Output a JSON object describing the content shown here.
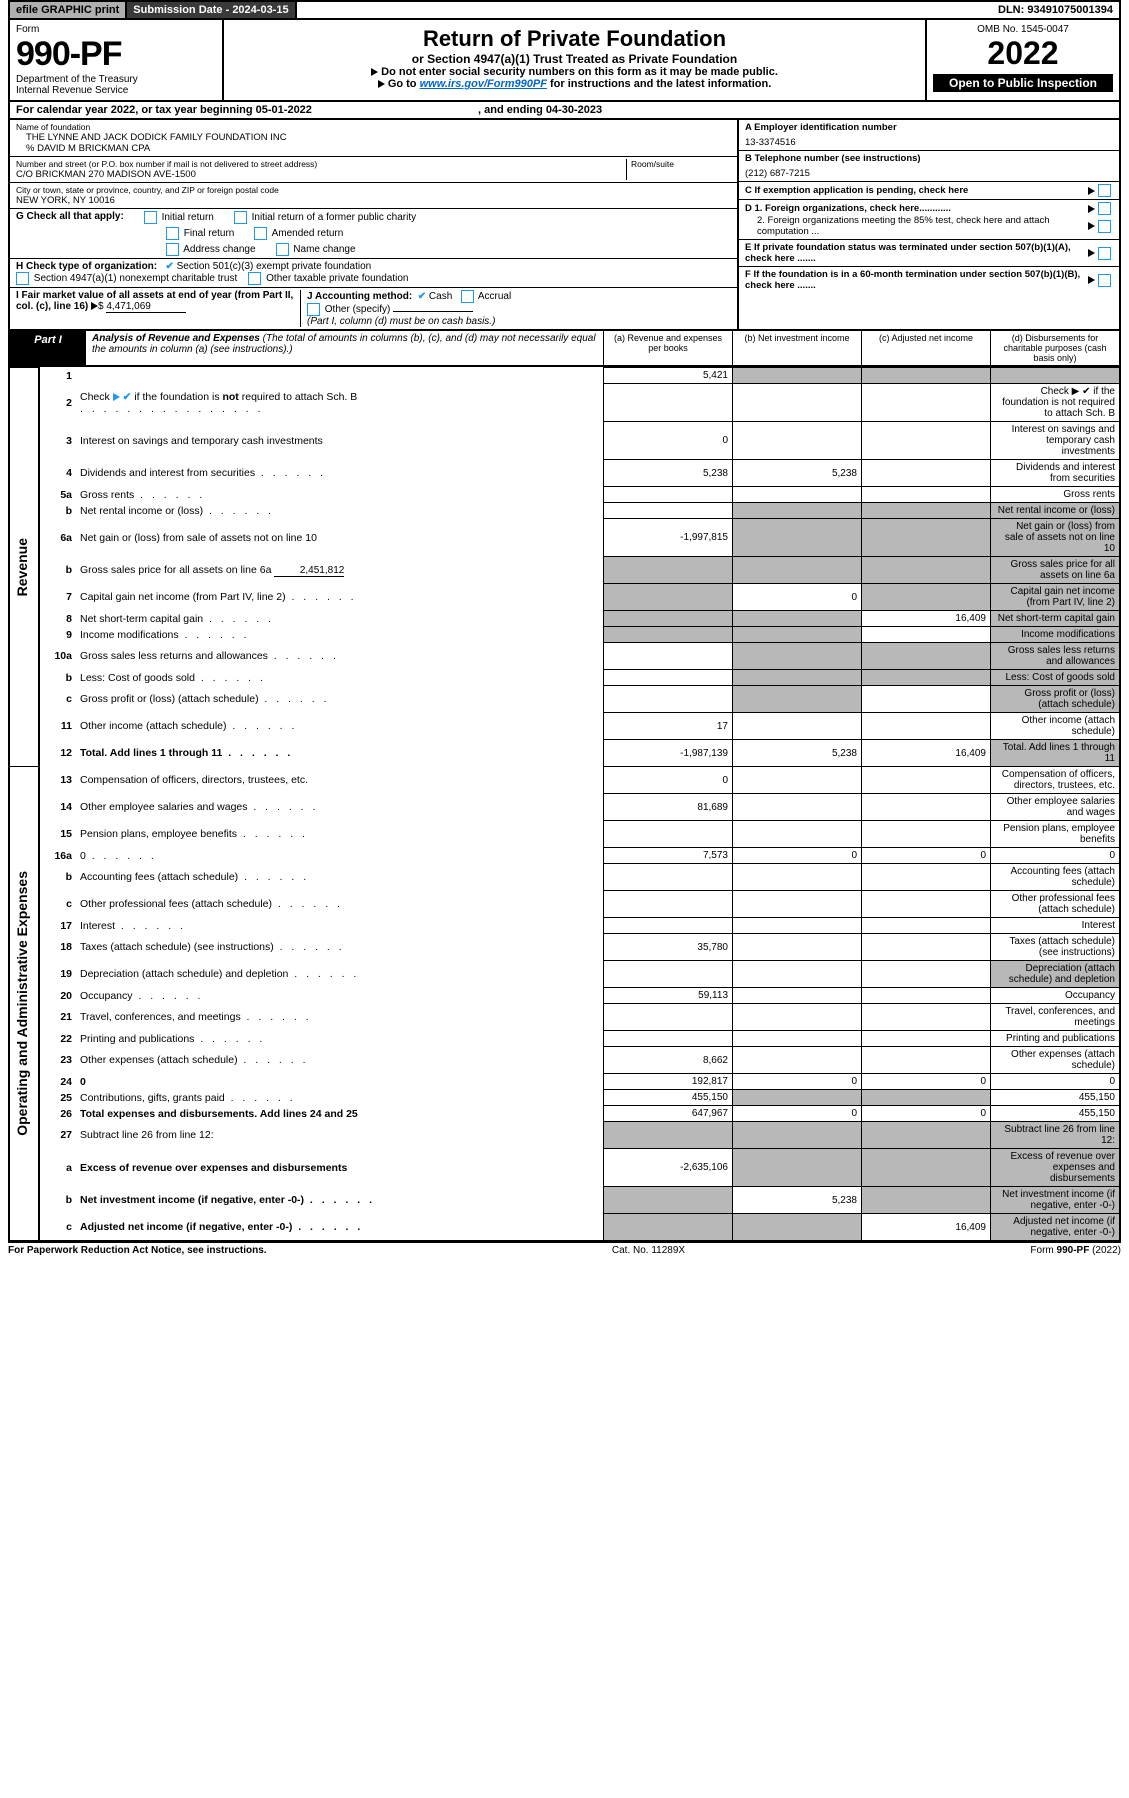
{
  "topbar": {
    "efile": "efile GRAPHIC print",
    "subdate_lbl": "Submission Date - 2024-03-15",
    "dln": "DLN: 93491075001394"
  },
  "header": {
    "form_word": "Form",
    "form_num": "990-PF",
    "dept": "Department of the Treasury",
    "irs": "Internal Revenue Service",
    "title": "Return of Private Foundation",
    "subtitle": "or Section 4947(a)(1) Trust Treated as Private Foundation",
    "note1": "Do not enter social security numbers on this form as it may be made public.",
    "note2_pre": "Go to ",
    "note2_link": "www.irs.gov/Form990PF",
    "note2_post": " for instructions and the latest information.",
    "omb": "OMB No. 1545-0047",
    "year": "2022",
    "inspect": "Open to Public Inspection"
  },
  "cal": {
    "text": "For calendar year 2022, or tax year beginning 05-01-2022",
    "end": ", and ending 04-30-2023"
  },
  "id": {
    "name_lbl": "Name of foundation",
    "name": "THE LYNNE AND JACK DODICK FAMILY FOUNDATION INC",
    "care": "% DAVID M BRICKMAN CPA",
    "addr_lbl": "Number and street (or P.O. box number if mail is not delivered to street address)",
    "room_lbl": "Room/suite",
    "addr": "C/O BRICKMAN 270 MADISON AVE-1500",
    "city_lbl": "City or town, state or province, country, and ZIP or foreign postal code",
    "city": "NEW YORK, NY  10016",
    "ein_lbl": "A Employer identification number",
    "ein": "13-3374516",
    "tel_lbl": "B Telephone number (see instructions)",
    "tel": "(212) 687-7215",
    "c": "C If exemption application is pending, check here",
    "d1": "D 1. Foreign organizations, check here............",
    "d2": "2. Foreign organizations meeting the 85% test, check here and attach computation ...",
    "e": "E  If private foundation status was terminated under section 507(b)(1)(A), check here .......",
    "f": "F  If the foundation is in a 60-month termination under section 507(b)(1)(B), check here ......."
  },
  "g": {
    "lbl": "G Check all that apply:",
    "opts": [
      "Initial return",
      "Initial return of a former public charity",
      "Final return",
      "Amended return",
      "Address change",
      "Name change"
    ]
  },
  "h": {
    "lbl": "H Check type of organization:",
    "o1": "Section 501(c)(3) exempt private foundation",
    "o2": "Section 4947(a)(1) nonexempt charitable trust",
    "o3": "Other taxable private foundation"
  },
  "i": {
    "lbl": "I Fair market value of all assets at end of year (from Part II, col. (c), line 16)",
    "amt": "4,471,069"
  },
  "j": {
    "lbl": "J Accounting method:",
    "cash": "Cash",
    "accr": "Accrual",
    "other": "Other (specify)",
    "note": "(Part I, column (d) must be on cash basis.)"
  },
  "part1": {
    "lbl": "Part I",
    "title": "Analysis of Revenue and Expenses",
    "note": "(The total of amounts in columns (b), (c), and (d) may not necessarily equal the amounts in column (a) (see instructions).)",
    "cols": {
      "a": "(a)  Revenue and expenses per books",
      "b": "(b)  Net investment income",
      "c": "(c)  Adjusted net income",
      "d": "(d)  Disbursements for charitable purposes (cash basis only)"
    }
  },
  "side": {
    "rev": "Revenue",
    "exp": "Operating and Administrative Expenses"
  },
  "lines": [
    {
      "n": "1",
      "d": "",
      "a": "5,421",
      "b": "",
      "c": "",
      "sb": true,
      "sc": true,
      "sd": true
    },
    {
      "n": "2",
      "d": "Check  ▶ ✔  if the foundation is not required to attach Sch. B",
      "sep": true,
      "bold_not": true
    },
    {
      "n": "3",
      "d": "Interest on savings and temporary cash investments",
      "a": "0"
    },
    {
      "n": "4",
      "d": "Dividends and interest from securities",
      "a": "5,238",
      "b": "5,238"
    },
    {
      "n": "5a",
      "d": "Gross rents"
    },
    {
      "n": "b",
      "d": "Net rental income or (loss)",
      "sa": false,
      "sb": true,
      "sc": true,
      "sd": true
    },
    {
      "n": "6a",
      "d": "Net gain or (loss) from sale of assets not on line 10",
      "a": "-1,997,815",
      "sb": true,
      "sc": true,
      "sd": true
    },
    {
      "n": "b",
      "d": "Gross sales price for all assets on line 6a",
      "inline_amt": "2,451,812",
      "sa": true,
      "sb": true,
      "sc": true,
      "sd": true
    },
    {
      "n": "7",
      "d": "Capital gain net income (from Part IV, line 2)",
      "b": "0",
      "sa": true,
      "sc": true,
      "sd": true
    },
    {
      "n": "8",
      "d": "Net short-term capital gain",
      "c": "16,409",
      "sa": true,
      "sb": true,
      "sd": true
    },
    {
      "n": "9",
      "d": "Income modifications",
      "sa": true,
      "sb": true,
      "sd": true
    },
    {
      "n": "10a",
      "d": "Gross sales less returns and allowances",
      "sa": false,
      "sb": true,
      "sc": true,
      "sd": true
    },
    {
      "n": "b",
      "d": "Less: Cost of goods sold",
      "sa": false,
      "sb": true,
      "sc": true,
      "sd": true
    },
    {
      "n": "c",
      "d": "Gross profit or (loss) (attach schedule)",
      "sb": true,
      "sd": true
    },
    {
      "n": "11",
      "d": "Other income (attach schedule)",
      "a": "17"
    },
    {
      "n": "12",
      "d": "Total. Add lines 1 through 11",
      "a": "-1,987,139",
      "b": "5,238",
      "c": "16,409",
      "bold": true,
      "sd": true
    },
    {
      "n": "13",
      "d": "Compensation of officers, directors, trustees, etc.",
      "a": "0"
    },
    {
      "n": "14",
      "d": "Other employee salaries and wages",
      "a": "81,689"
    },
    {
      "n": "15",
      "d": "Pension plans, employee benefits"
    },
    {
      "n": "16a",
      "d": "0",
      "a": "7,573",
      "b": "0",
      "c": "0"
    },
    {
      "n": "b",
      "d": "Accounting fees (attach schedule)"
    },
    {
      "n": "c",
      "d": "Other professional fees (attach schedule)"
    },
    {
      "n": "17",
      "d": "Interest"
    },
    {
      "n": "18",
      "d": "Taxes (attach schedule) (see instructions)",
      "a": "35,780"
    },
    {
      "n": "19",
      "d": "Depreciation (attach schedule) and depletion",
      "sd": true
    },
    {
      "n": "20",
      "d": "Occupancy",
      "a": "59,113"
    },
    {
      "n": "21",
      "d": "Travel, conferences, and meetings"
    },
    {
      "n": "22",
      "d": "Printing and publications"
    },
    {
      "n": "23",
      "d": "Other expenses (attach schedule)",
      "a": "8,662"
    },
    {
      "n": "24",
      "d": "0",
      "a": "192,817",
      "b": "0",
      "c": "0",
      "bold": true
    },
    {
      "n": "25",
      "d": "Contributions, gifts, grants paid",
      "a": "455,150",
      "d2": "455,150",
      "sb": true,
      "sc": true
    },
    {
      "n": "26",
      "d": "Total expenses and disbursements. Add lines 24 and 25",
      "a": "647,967",
      "b": "0",
      "c": "0",
      "d2": "455,150",
      "bold": true
    },
    {
      "n": "27",
      "d": "Subtract line 26 from line 12:",
      "sa": true,
      "sb": true,
      "sc": true,
      "sd": true
    },
    {
      "n": "a",
      "d": "Excess of revenue over expenses and disbursements",
      "a": "-2,635,106",
      "bold": true,
      "sb": true,
      "sc": true,
      "sd": true
    },
    {
      "n": "b",
      "d": "Net investment income (if negative, enter -0-)",
      "b": "5,238",
      "bold": true,
      "sa": true,
      "sc": true,
      "sd": true
    },
    {
      "n": "c",
      "d": "Adjusted net income (if negative, enter -0-)",
      "c": "16,409",
      "bold": true,
      "sa": true,
      "sb": true,
      "sd": true
    }
  ],
  "footer": {
    "l": "For Paperwork Reduction Act Notice, see instructions.",
    "m": "Cat. No. 11289X",
    "r": "Form 990-PF (2022)"
  }
}
